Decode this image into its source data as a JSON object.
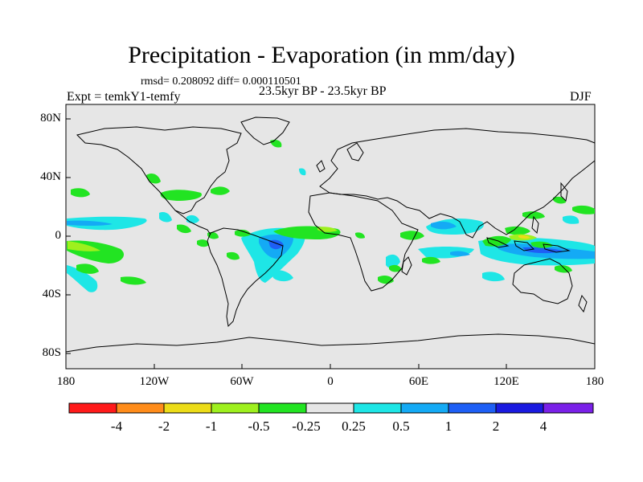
{
  "title": "Precipitation - Evaporation (in mm/day)",
  "stats": "rmsd= 0.208092 diff= 0.000110501",
  "period": "23.5kyr BP - 23.5kyr BP",
  "experiment": "Expt = temkY1-temfy",
  "season": "DJF",
  "latitude_labels": [
    "80N",
    "40N",
    "0",
    "40S",
    "80S"
  ],
  "longitude_labels": [
    "180",
    "120W",
    "60W",
    "0",
    "60E",
    "120E",
    "180"
  ],
  "colorbar": {
    "labels": [
      "-4",
      "-2",
      "-1",
      "-0.5",
      "-0.25",
      "0.25",
      "0.5",
      "1",
      "2",
      "4"
    ],
    "colors": [
      "#ff1a1a",
      "#ff8c1a",
      "#ecdc18",
      "#9ef01e",
      "#22e422",
      "#e6e6e6",
      "#1ee6e6",
      "#14aaf5",
      "#1e5ff5",
      "#1a1ae0",
      "#7a20e8"
    ]
  },
  "map_colors": {
    "background": "#e6e6e6",
    "coastline": "#000000"
  }
}
